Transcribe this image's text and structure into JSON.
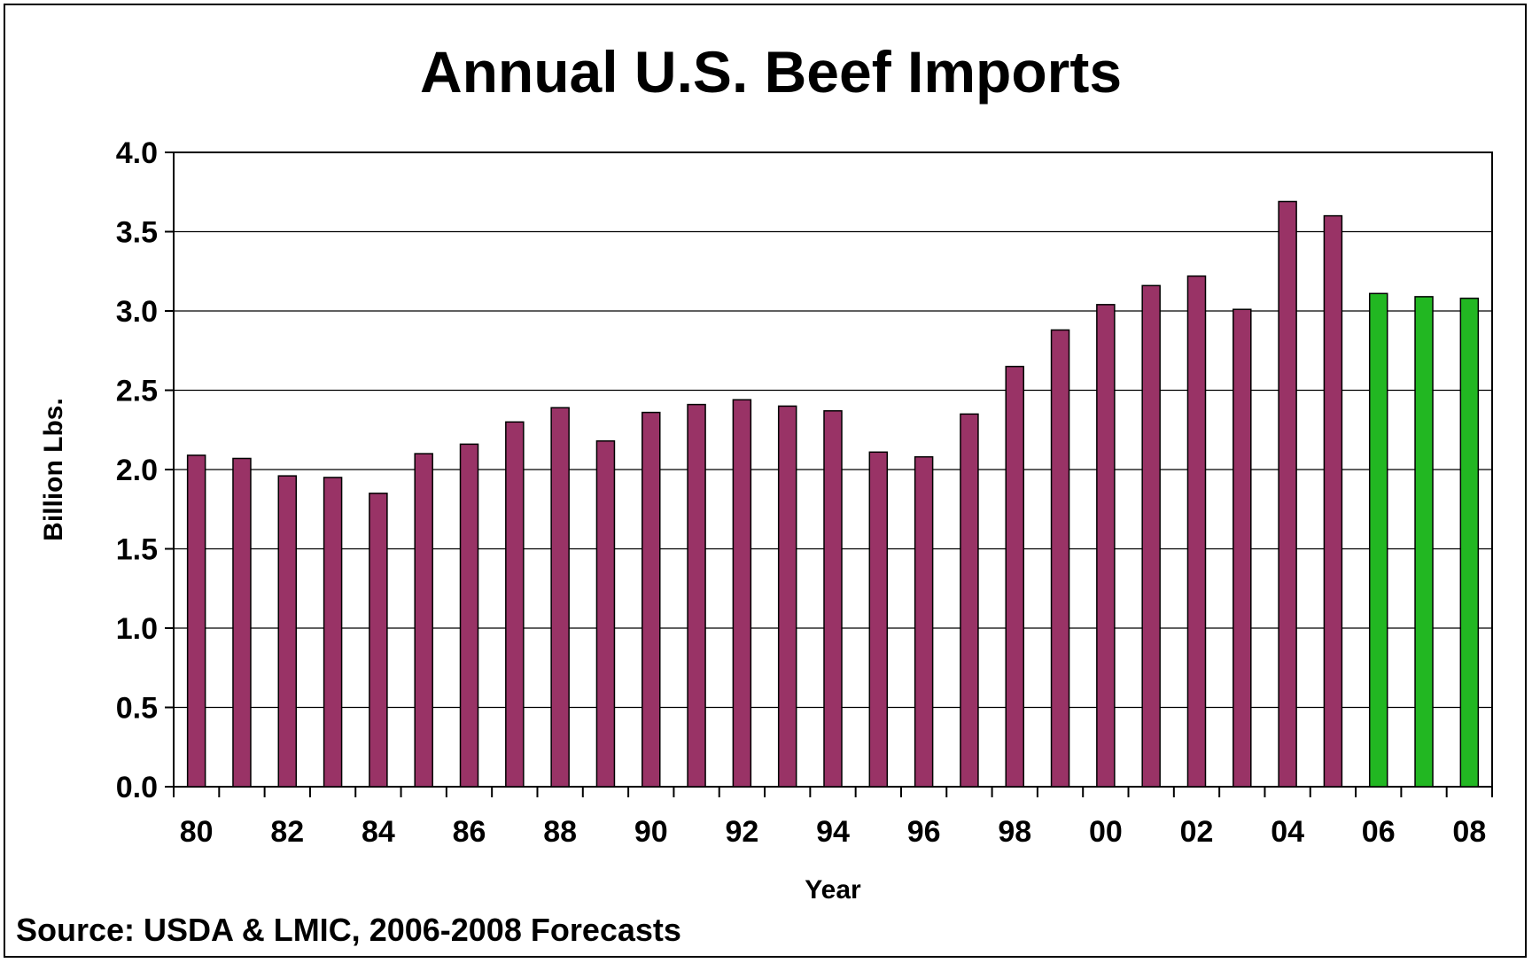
{
  "chart_data": {
    "type": "bar",
    "title": "Annual U.S. Beef Imports",
    "xlabel": "Year",
    "ylabel": "Billion Lbs.",
    "source": "Source: USDA & LMIC, 2006-2008 Forecasts",
    "ylim": [
      0,
      4.0
    ],
    "y_ticks": [
      "0.0",
      "0.5",
      "1.0",
      "1.5",
      "2.0",
      "2.5",
      "3.0",
      "3.5",
      "4.0"
    ],
    "x_tick_labels": [
      "80",
      "82",
      "84",
      "86",
      "88",
      "90",
      "92",
      "94",
      "96",
      "98",
      "00",
      "02",
      "04",
      "06",
      "08"
    ],
    "grid": true,
    "categories": [
      "1980",
      "1981",
      "1982",
      "1983",
      "1984",
      "1985",
      "1986",
      "1987",
      "1988",
      "1989",
      "1990",
      "1991",
      "1992",
      "1993",
      "1994",
      "1995",
      "1996",
      "1997",
      "1998",
      "1999",
      "2000",
      "2001",
      "2002",
      "2003",
      "2004",
      "2005",
      "2006",
      "2007",
      "2008"
    ],
    "values": [
      2.09,
      2.07,
      1.96,
      1.95,
      1.85,
      2.1,
      2.16,
      2.3,
      2.39,
      2.18,
      2.36,
      2.41,
      2.44,
      2.4,
      2.37,
      2.11,
      2.08,
      2.35,
      2.65,
      2.88,
      3.04,
      3.16,
      3.22,
      3.01,
      3.69,
      3.6,
      3.11,
      3.09,
      3.08
    ],
    "forecast": [
      false,
      false,
      false,
      false,
      false,
      false,
      false,
      false,
      false,
      false,
      false,
      false,
      false,
      false,
      false,
      false,
      false,
      false,
      false,
      false,
      false,
      false,
      false,
      false,
      false,
      false,
      true,
      true,
      true
    ],
    "colors": {
      "actual": "#993366",
      "forecast": "#22B722",
      "outline": "#000000"
    }
  }
}
